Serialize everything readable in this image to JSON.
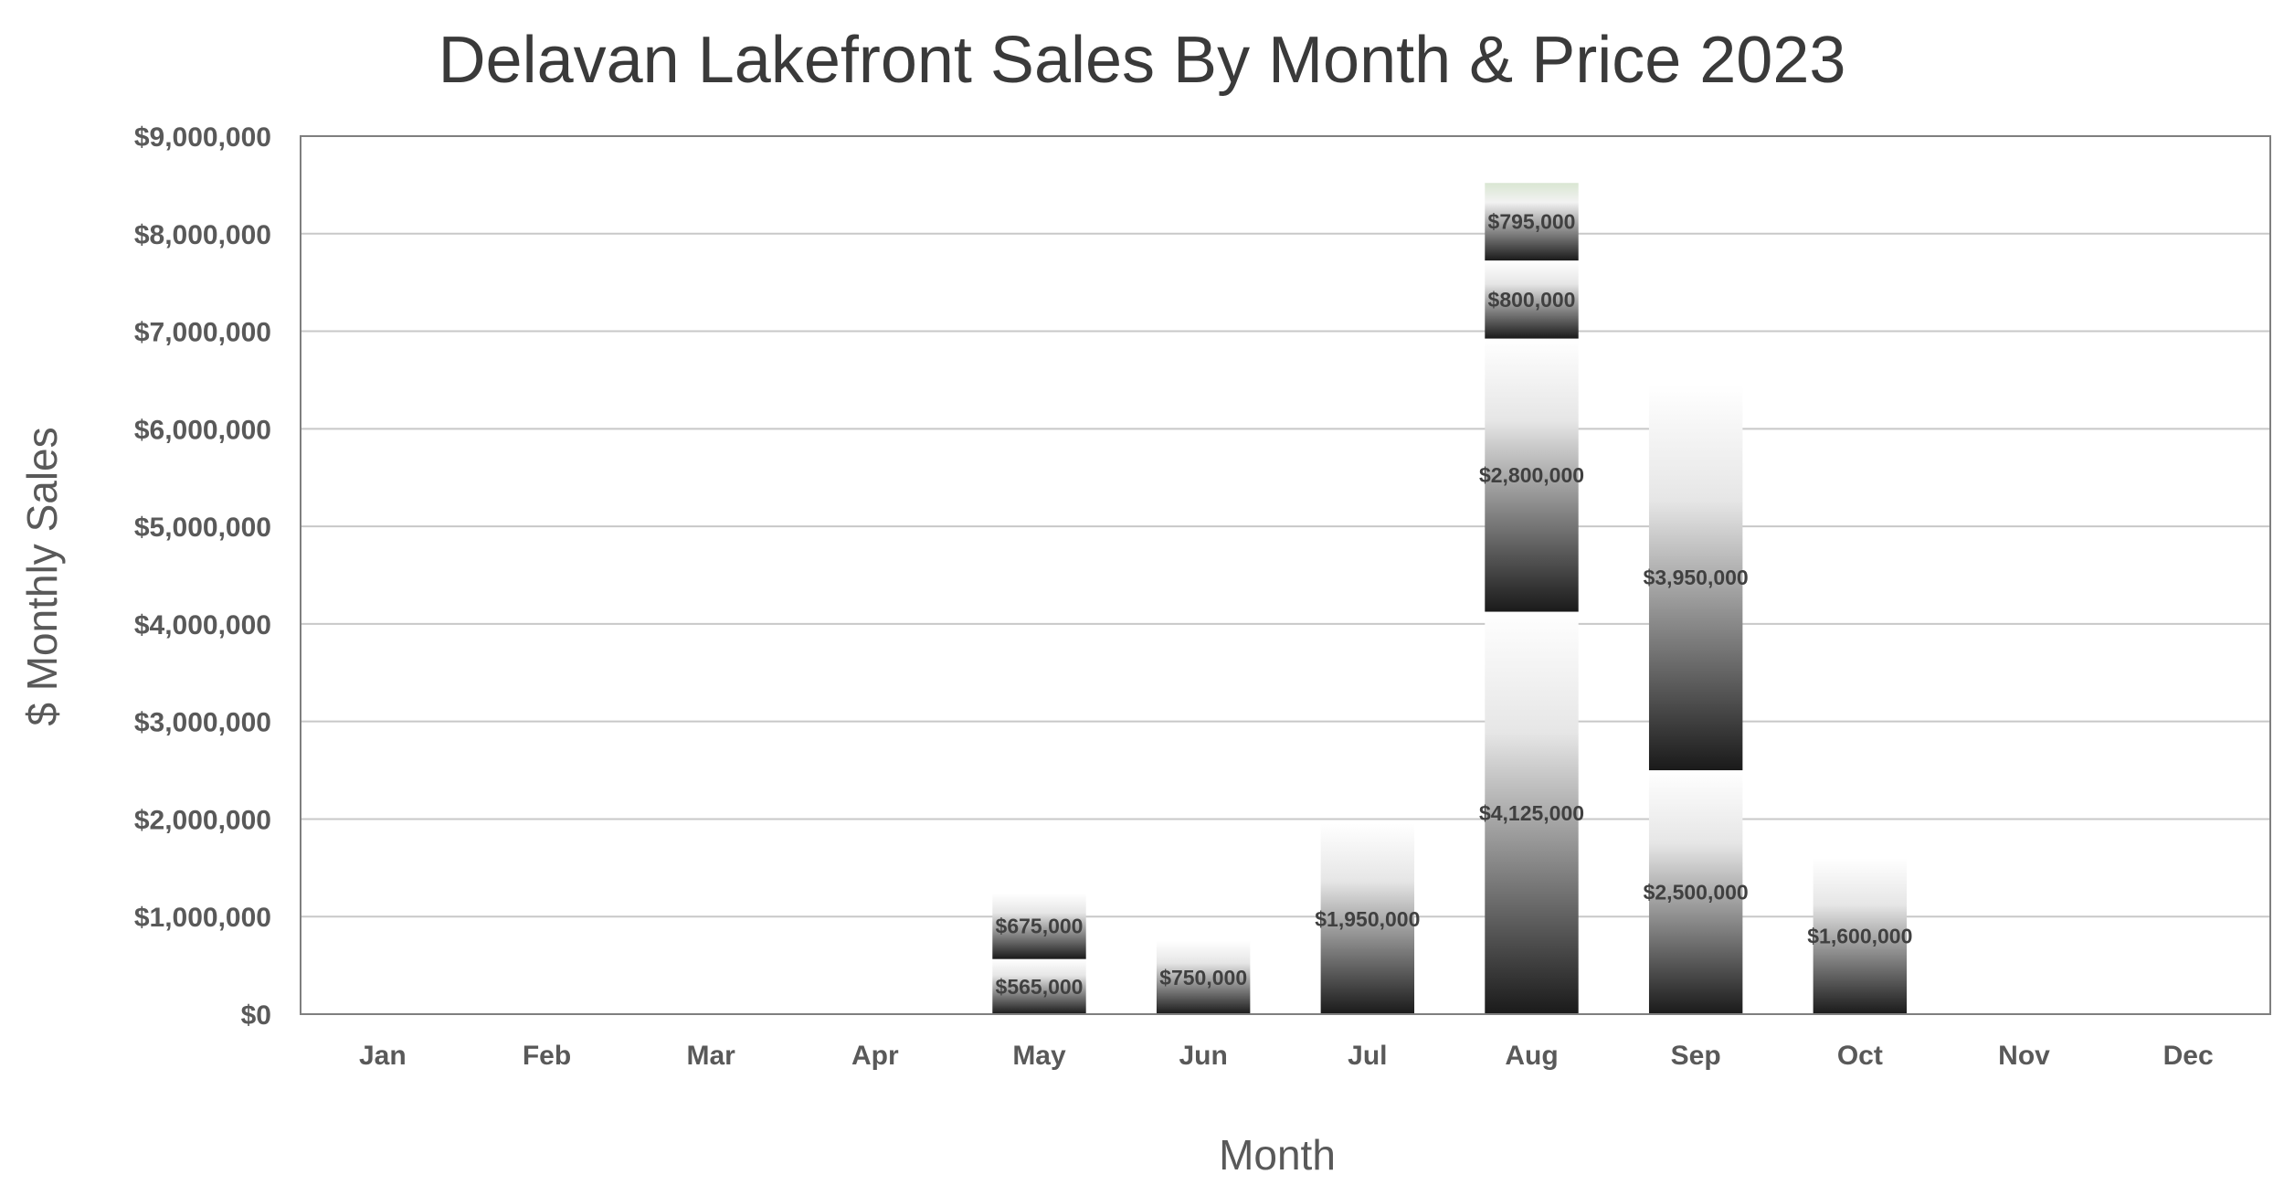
{
  "chart_data": {
    "type": "bar",
    "stacked": true,
    "title": "Delavan Lakefront Sales By Month & Price 2023",
    "xlabel": "Month",
    "ylabel": "$ Monthly Sales",
    "ylim": [
      0,
      9000000
    ],
    "y_ticks": [
      {
        "value": 0,
        "label": "$0"
      },
      {
        "value": 1000000,
        "label": "$1,000,000"
      },
      {
        "value": 2000000,
        "label": "$2,000,000"
      },
      {
        "value": 3000000,
        "label": "$3,000,000"
      },
      {
        "value": 4000000,
        "label": "$4,000,000"
      },
      {
        "value": 5000000,
        "label": "$5,000,000"
      },
      {
        "value": 6000000,
        "label": "$6,000,000"
      },
      {
        "value": 7000000,
        "label": "$7,000,000"
      },
      {
        "value": 8000000,
        "label": "$8,000,000"
      },
      {
        "value": 9000000,
        "label": "$9,000,000"
      }
    ],
    "grid": true,
    "legend": "none",
    "categories": [
      "Jan",
      "Feb",
      "Mar",
      "Apr",
      "May",
      "Jun",
      "Jul",
      "Aug",
      "Sep",
      "Oct",
      "Nov",
      "Dec"
    ],
    "stacks": [
      {
        "month": "Jan",
        "segments": []
      },
      {
        "month": "Feb",
        "segments": []
      },
      {
        "month": "Mar",
        "segments": []
      },
      {
        "month": "Apr",
        "segments": []
      },
      {
        "month": "May",
        "segments": [
          {
            "value": 565000,
            "label": "$565,000"
          },
          {
            "value": 675000,
            "label": "$675,000"
          }
        ]
      },
      {
        "month": "Jun",
        "segments": [
          {
            "value": 750000,
            "label": "$750,000"
          }
        ]
      },
      {
        "month": "Jul",
        "segments": [
          {
            "value": 1950000,
            "label": "$1,950,000"
          }
        ]
      },
      {
        "month": "Aug",
        "segments": [
          {
            "value": 4125000,
            "label": "$4,125,000"
          },
          {
            "value": 2800000,
            "label": "$2,800,000"
          },
          {
            "value": 800000,
            "label": "$800,000"
          },
          {
            "value": 795000,
            "label": "$795,000"
          }
        ]
      },
      {
        "month": "Sep",
        "segments": [
          {
            "value": 2500000,
            "label": "$2,500,000"
          },
          {
            "value": 3950000,
            "label": "$3,950,000"
          }
        ]
      },
      {
        "month": "Oct",
        "segments": [
          {
            "value": 1600000,
            "label": "$1,600,000"
          }
        ]
      },
      {
        "month": "Nov",
        "segments": []
      },
      {
        "month": "Dec",
        "segments": []
      }
    ],
    "colors": {
      "bar_light": "#ffffff",
      "bar_mid": "#8c8c8c",
      "bar_dark": "#1a1a1a",
      "top_segment_tint": "#d9e6d2",
      "gridline": "#c8c8c8",
      "border": "#7f7f7f",
      "text": "#595959"
    }
  }
}
